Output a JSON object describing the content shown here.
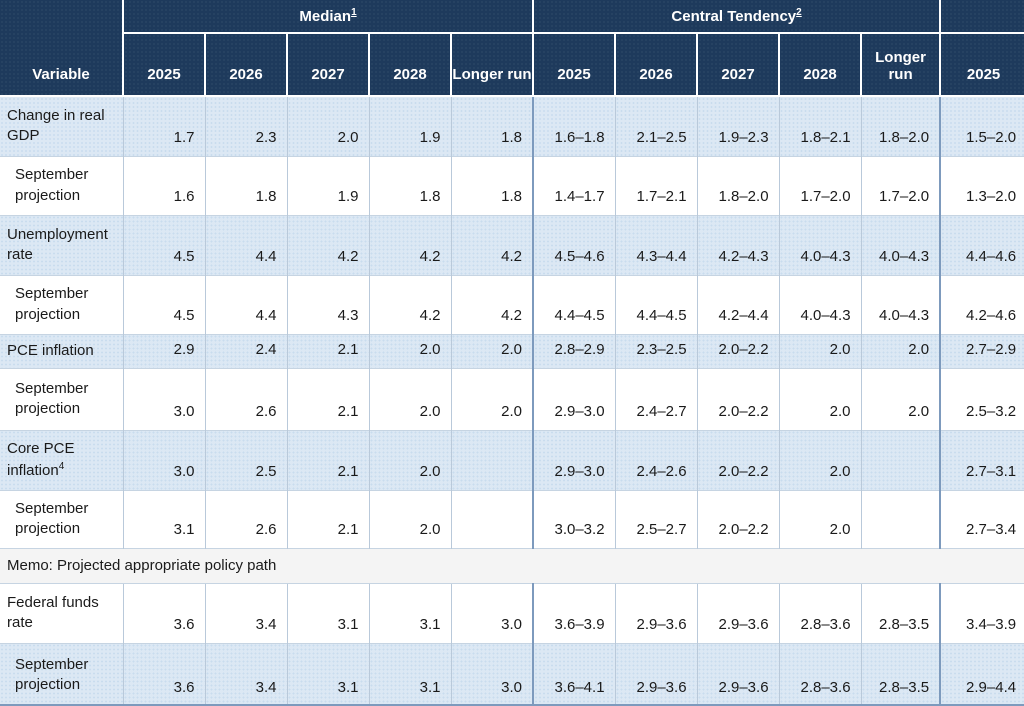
{
  "table": {
    "header": {
      "variable_label": "Variable",
      "groups": [
        {
          "label": "Median",
          "footnote": "1"
        },
        {
          "label": "Central Tendency",
          "footnote": "2"
        }
      ],
      "median_years": [
        "2025",
        "2026",
        "2027",
        "2028",
        "Longer run"
      ],
      "ct_years": [
        "2025",
        "2026",
        "2027",
        "2028",
        "Longer run"
      ],
      "range_years": [
        "2025"
      ]
    },
    "rows": [
      {
        "type": "data",
        "label": "Change in real GDP",
        "shade": "blue",
        "values": [
          "1.7",
          "2.3",
          "2.0",
          "1.9",
          "1.8",
          "1.6–1.8",
          "2.1–2.5",
          "1.9–2.3",
          "1.8–2.1",
          "1.8–2.0",
          "1.5–2.0"
        ]
      },
      {
        "type": "data",
        "label": "September projection",
        "indent": true,
        "shade": "white",
        "values": [
          "1.6",
          "1.8",
          "1.9",
          "1.8",
          "1.8",
          "1.4–1.7",
          "1.7–2.1",
          "1.8–2.0",
          "1.7–2.0",
          "1.7–2.0",
          "1.3–2.0"
        ]
      },
      {
        "type": "data",
        "label": "Unemployment rate",
        "shade": "blue",
        "values": [
          "4.5",
          "4.4",
          "4.2",
          "4.2",
          "4.2",
          "4.5–4.6",
          "4.3–4.4",
          "4.2–4.3",
          "4.0–4.3",
          "4.0–4.3",
          "4.4–4.6"
        ]
      },
      {
        "type": "data",
        "label": "September projection",
        "indent": true,
        "shade": "white",
        "values": [
          "4.5",
          "4.4",
          "4.3",
          "4.2",
          "4.2",
          "4.4–4.5",
          "4.4–4.5",
          "4.2–4.4",
          "4.0–4.3",
          "4.0–4.3",
          "4.2–4.6"
        ]
      },
      {
        "type": "data",
        "label": "PCE inflation",
        "shade": "blue",
        "values": [
          "2.9",
          "2.4",
          "2.1",
          "2.0",
          "2.0",
          "2.8–2.9",
          "2.3–2.5",
          "2.0–2.2",
          "2.0",
          "2.0",
          "2.7–2.9"
        ]
      },
      {
        "type": "data",
        "label": "September projection",
        "indent": true,
        "shade": "white",
        "values": [
          "3.0",
          "2.6",
          "2.1",
          "2.0",
          "2.0",
          "2.9–3.0",
          "2.4–2.7",
          "2.0–2.2",
          "2.0",
          "2.0",
          "2.5–3.2"
        ]
      },
      {
        "type": "data",
        "label": "Core PCE inflation",
        "sup": "4",
        "shade": "blue",
        "values": [
          "3.0",
          "2.5",
          "2.1",
          "2.0",
          "",
          "2.9–3.0",
          "2.4–2.6",
          "2.0–2.2",
          "2.0",
          "",
          "2.7–3.1"
        ]
      },
      {
        "type": "data",
        "label": "September projection",
        "indent": true,
        "shade": "white",
        "values": [
          "3.1",
          "2.6",
          "2.1",
          "2.0",
          "",
          "3.0–3.2",
          "2.5–2.7",
          "2.0–2.2",
          "2.0",
          "",
          "2.7–3.4"
        ]
      },
      {
        "type": "memo",
        "label": "Memo: Projected appropriate policy path"
      },
      {
        "type": "data",
        "label": "Federal funds rate",
        "shade": "white",
        "values": [
          "3.6",
          "3.4",
          "3.1",
          "3.1",
          "3.0",
          "3.6–3.9",
          "2.9–3.6",
          "2.9–3.6",
          "2.8–3.6",
          "2.8–3.5",
          "3.4–3.9"
        ]
      },
      {
        "type": "data",
        "label": "September projection",
        "indent": true,
        "shade": "blue",
        "values": [
          "3.6",
          "3.4",
          "3.1",
          "3.1",
          "3.0",
          "3.6–4.1",
          "2.9–3.6",
          "2.9–3.6",
          "2.8–3.6",
          "2.8–3.5",
          "2.9–4.4"
        ]
      }
    ]
  },
  "colors": {
    "header_navy": "#1e3a5c",
    "row_light_blue": "#dce8f4",
    "row_white": "#ffffff",
    "memo_gray": "#f4f4f4",
    "cell_border": "#b9c9da",
    "section_border": "#7d9abd",
    "header_text": "#ffffff",
    "body_text": "#1a1a1a"
  }
}
